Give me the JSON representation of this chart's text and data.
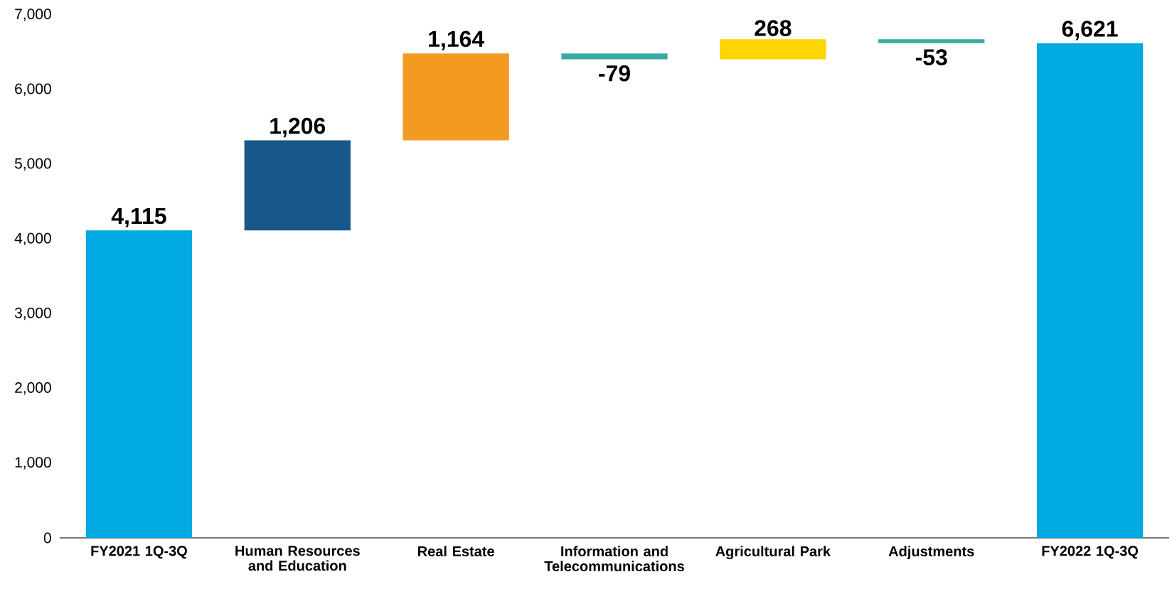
{
  "chart_data": {
    "type": "bar",
    "categories": [
      "FY2021 1Q-3Q",
      "Human Resources and Education",
      "Real Estate",
      "Information and Telecommunications",
      "Agricultural Park",
      "Adjustments",
      "FY2022 1Q-3Q"
    ],
    "values": [
      4115,
      1206,
      1164,
      -79,
      268,
      -53,
      6621
    ],
    "base": [
      0,
      4115,
      5321,
      6485,
      6406,
      6674,
      0
    ],
    "colors": [
      "#00a9e0",
      "#17578a",
      "#f39a21",
      "#3aaaa0",
      "#ffd500",
      "#3aaaa0",
      "#00a9e0"
    ],
    "value_labels": [
      "4,115",
      "1,206",
      "1,164",
      "-79",
      "268",
      "-53",
      "6,621"
    ],
    "ylim": [
      0,
      7000
    ],
    "yticks": [
      0,
      {
        "value": 1000,
        "label": "1,000"
      },
      {
        "value": 2000,
        "label": "2,000"
      },
      {
        "value": 3000,
        "label": "3,000"
      },
      {
        "value": 4000,
        "label": "4,000"
      },
      {
        "value": 5000,
        "label": "5,000"
      },
      {
        "value": 6000,
        "label": "6,000"
      },
      {
        "value": 7000,
        "label": "7,000"
      }
    ]
  }
}
